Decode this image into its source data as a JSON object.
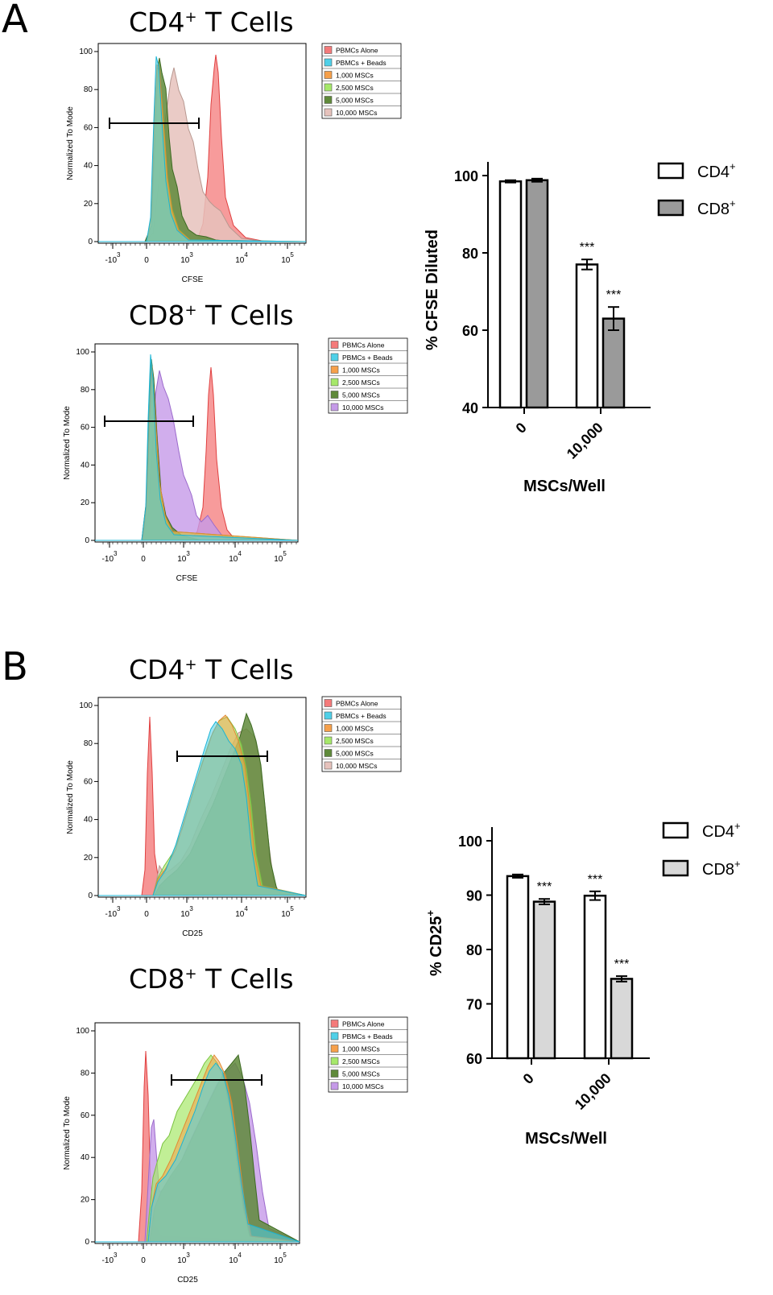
{
  "panels": [
    {
      "letter": "A",
      "histograms": [
        {
          "title_main": "CD4",
          "title_sup": "+",
          "title_rest": " T Cells",
          "xlabel": "CFSE",
          "ylabel": "Normalized To Mode",
          "x_ticks": [
            "-10^3",
            "0",
            "10^3",
            "10^4",
            "10^5"
          ],
          "y_ticks": [
            "0",
            "20",
            "40",
            "60",
            "80",
            "100"
          ],
          "legend": [
            {
              "label": "PBMCs Alone",
              "color": "#f47a7a"
            },
            {
              "label": "PBMCs + Beads",
              "color": "#4fd0e8"
            },
            {
              "label": "1,000 MSCs",
              "color": "#f6a04a"
            },
            {
              "label": "2,500 MSCs",
              "color": "#a6e86a"
            },
            {
              "label": "5,000 MSCs",
              "color": "#5f8a3a"
            },
            {
              "label": "10,000 MSCs",
              "color": "#e6c2bc"
            }
          ]
        },
        {
          "title_main": "CD8",
          "title_sup": "+",
          "title_rest": " T Cells",
          "xlabel": "CFSE",
          "ylabel": "Normalized To Mode",
          "x_ticks": [
            "-10^3",
            "0",
            "10^3",
            "10^4",
            "10^5"
          ],
          "y_ticks": [
            "0",
            "20",
            "40",
            "60",
            "80",
            "100"
          ],
          "legend": [
            {
              "label": "PBMCs Alone",
              "color": "#f47a7a"
            },
            {
              "label": "PBMCs + Beads",
              "color": "#4fd0e8"
            },
            {
              "label": "1,000 MSCs",
              "color": "#f6a04a"
            },
            {
              "label": "2,500 MSCs",
              "color": "#a6e86a"
            },
            {
              "label": "5,000 MSCs",
              "color": "#5f8a3a"
            },
            {
              "label": "10,000 MSCs",
              "color": "#c59ae8"
            }
          ]
        }
      ]
    },
    {
      "letter": "B",
      "histograms": [
        {
          "title_main": "CD4",
          "title_sup": "+",
          "title_rest": " T Cells",
          "xlabel": "CD25",
          "ylabel": "Normalized To Mode",
          "x_ticks": [
            "-10^3",
            "0",
            "10^3",
            "10^4",
            "10^5"
          ],
          "y_ticks": [
            "0",
            "20",
            "40",
            "60",
            "80",
            "100"
          ],
          "legend": [
            {
              "label": "PBMCs Alone",
              "color": "#f47a7a"
            },
            {
              "label": "PBMCs + Beads",
              "color": "#4fd0e8"
            },
            {
              "label": "1,000 MSCs",
              "color": "#f6a04a"
            },
            {
              "label": "2,500 MSCs",
              "color": "#a6e86a"
            },
            {
              "label": "5,000 MSCs",
              "color": "#5f8a3a"
            },
            {
              "label": "10,000 MSCs",
              "color": "#e6c2bc"
            }
          ]
        },
        {
          "title_main": "CD8",
          "title_sup": "+",
          "title_rest": " T Cells",
          "xlabel": "CD25",
          "ylabel": "Normalized To Mode",
          "x_ticks": [
            "-10^3",
            "0",
            "10^3",
            "10^4",
            "10^5"
          ],
          "y_ticks": [
            "0",
            "20",
            "40",
            "60",
            "80",
            "100"
          ],
          "legend": [
            {
              "label": "PBMCs Alone",
              "color": "#f47a7a"
            },
            {
              "label": "PBMCs + Beads",
              "color": "#4fd0e8"
            },
            {
              "label": "1,000 MSCs",
              "color": "#f6a04a"
            },
            {
              "label": "2,500 MSCs",
              "color": "#a6e86a"
            },
            {
              "label": "5,000 MSCs",
              "color": "#5f8a3a"
            },
            {
              "label": "10,000 MSCs",
              "color": "#c59ae8"
            }
          ]
        }
      ]
    }
  ],
  "chart_data": [
    {
      "type": "bar",
      "panel": "A",
      "categories": [
        "0",
        "10,000"
      ],
      "series": [
        {
          "name": "CD4+",
          "legend_main": "CD4",
          "legend_sup": "+",
          "color": "#ffffff",
          "values": [
            98.5,
            77.0
          ],
          "errors": [
            0.3,
            1.3
          ],
          "annotations": [
            "",
            "***"
          ]
        },
        {
          "name": "CD8+",
          "legend_main": "CD8",
          "legend_sup": "+",
          "color": "#9a9a9a",
          "values": [
            98.8,
            63.0
          ],
          "errors": [
            0.4,
            3.0
          ],
          "annotations": [
            "",
            "***"
          ]
        }
      ],
      "ylim": [
        40,
        100
      ],
      "yticks": [
        40,
        60,
        80,
        100
      ],
      "ylabel": "% CFSE Diluted",
      "ylabel_sup": "",
      "xlabel": "MSCs/Well",
      "title": ""
    },
    {
      "type": "bar",
      "panel": "B",
      "categories": [
        "0",
        "10,000"
      ],
      "series": [
        {
          "name": "CD4+",
          "legend_main": "CD4",
          "legend_sup": "+",
          "color": "#ffffff",
          "values": [
            93.5,
            89.9
          ],
          "errors": [
            0.3,
            0.8
          ],
          "annotations": [
            "",
            "***"
          ]
        },
        {
          "name": "CD8+",
          "legend_main": "CD8",
          "legend_sup": "+",
          "color": "#d8d8d8",
          "values": [
            88.8,
            74.6
          ],
          "errors": [
            0.5,
            0.5
          ],
          "annotations": [
            "***",
            "***"
          ]
        }
      ],
      "ylim": [
        60,
        100
      ],
      "yticks": [
        60,
        70,
        80,
        90,
        100
      ],
      "ylabel": "% CD25",
      "ylabel_sup": "+",
      "xlabel": "MSCs/Well",
      "title": ""
    }
  ]
}
